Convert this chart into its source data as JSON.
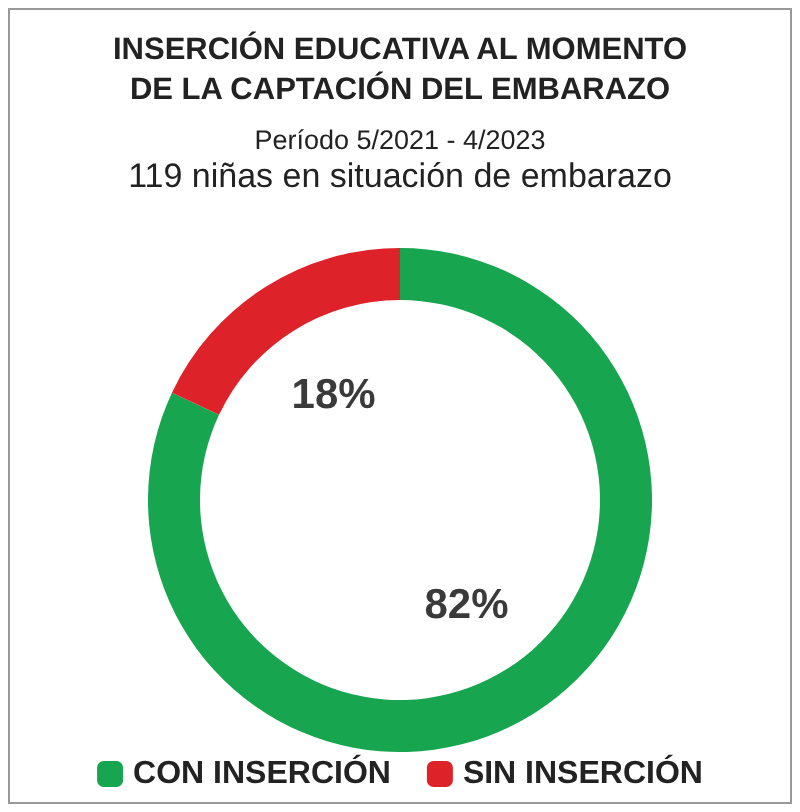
{
  "chart_data": {
    "type": "donut",
    "title": "INSERCIÓN EDUCATIVA AL MOMENTO\nDE LA CAPTACIÓN DEL EMBARAZO",
    "subtitle": "Período 5/2021 - 4/2023",
    "annotations": [
      "119 niñas en situación de embarazo"
    ],
    "categories": [
      "CON INSERCIÓN",
      "SIN INSERCIÓN"
    ],
    "values": [
      82,
      18
    ],
    "colors": [
      "#17a550",
      "#de2229"
    ],
    "value_labels": [
      "82%",
      "18%"
    ],
    "legend": "bottom"
  }
}
